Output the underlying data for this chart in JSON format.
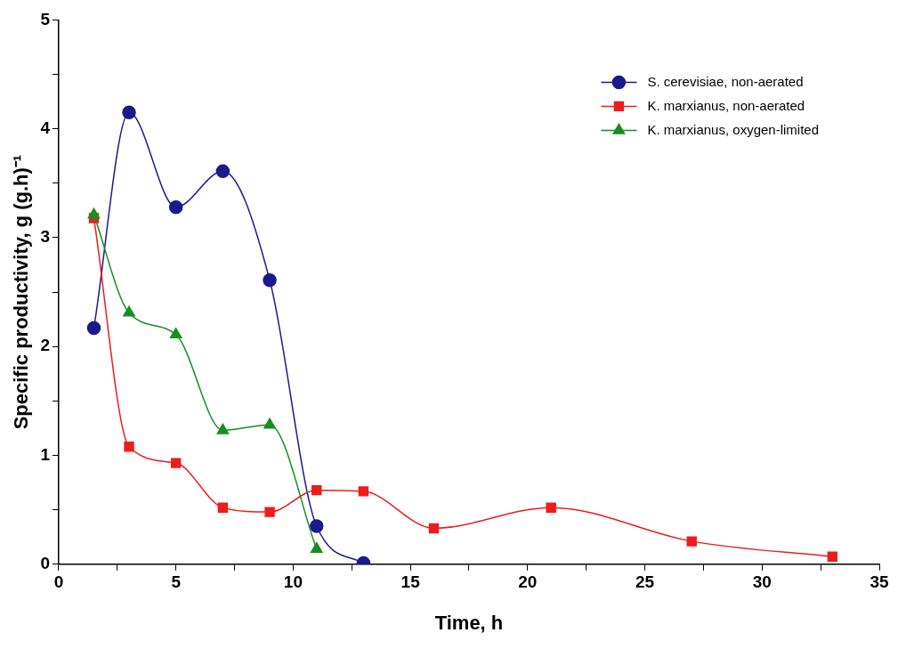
{
  "chart_data": {
    "type": "line",
    "xlabel": "Time, h",
    "ylabel": "Specific productivity, g (g.h)⁻¹",
    "xlim": [
      0,
      35
    ],
    "ylim": [
      0,
      5
    ],
    "xticks": [
      0,
      {
        "value": 2.5,
        "label": null
      },
      5,
      {
        "value": 7.5,
        "label": null
      },
      10,
      {
        "value": 12.5,
        "label": null
      },
      15,
      {
        "value": 17.5,
        "label": null
      },
      20,
      {
        "value": 22.5,
        "label": null
      },
      25,
      {
        "value": 27.5,
        "label": null
      },
      30,
      {
        "value": 32.5,
        "label": null
      },
      35
    ],
    "yticks": [
      0,
      {
        "value": 0.5,
        "label": null
      },
      1,
      {
        "value": 1.5,
        "label": null
      },
      2,
      {
        "value": 2.5,
        "label": null
      },
      3,
      {
        "value": 3.5,
        "label": null
      },
      4,
      {
        "value": 4.5,
        "label": null
      },
      5
    ],
    "grid": false,
    "legend": "top right",
    "line_style": "solid",
    "series": [
      {
        "name": "S. cerevisiae, non-aerated",
        "color": "#1a1a8c",
        "marker": "circle",
        "x": [
          1.5,
          3,
          5,
          7,
          9,
          11,
          13
        ],
        "values": [
          2.17,
          4.15,
          3.28,
          3.61,
          2.61,
          0.35,
          0.01
        ]
      },
      {
        "name": "K. marxianus, non-aerated",
        "color": "#ee1c1c",
        "marker": "square",
        "x": [
          1.5,
          3,
          5,
          7,
          9,
          11,
          13,
          16,
          21,
          27,
          33
        ],
        "values": [
          3.18,
          1.08,
          0.93,
          0.52,
          0.48,
          0.68,
          0.67,
          0.33,
          0.52,
          0.21,
          0.07
        ]
      },
      {
        "name": "K. marxianus, oxygen-limited",
        "color": "#14901e",
        "marker": "triangle",
        "x": [
          1.5,
          3,
          5,
          7,
          9,
          11
        ],
        "values": [
          3.21,
          2.31,
          2.11,
          1.23,
          1.28,
          0.14
        ]
      }
    ]
  }
}
